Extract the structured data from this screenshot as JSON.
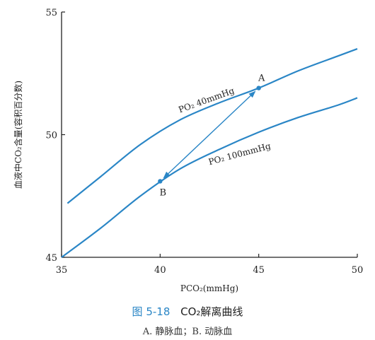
{
  "chart_data": {
    "type": "line",
    "xlabel": "PCO₂(mmHg)",
    "ylabel": "血液中CO₂含量(容积百分数)",
    "xlim": [
      35,
      50
    ],
    "ylim": [
      45,
      55
    ],
    "x_ticks": [
      35,
      40,
      45,
      50
    ],
    "y_ticks": [
      45,
      50,
      55
    ],
    "grid": false,
    "series": [
      {
        "name": "PO₂ 40mmHg",
        "color": "#2a86c6",
        "x": [
          35.3,
          37,
          39,
          41,
          43,
          45,
          47,
          49,
          50
        ],
        "y": [
          47.2,
          48.3,
          49.6,
          50.6,
          51.3,
          51.9,
          52.6,
          53.2,
          53.5
        ]
      },
      {
        "name": "PO₂ 100mmHg",
        "color": "#2a86c6",
        "x": [
          35,
          37,
          39,
          41,
          43,
          45,
          47,
          49,
          50
        ],
        "y": [
          45.0,
          46.2,
          47.5,
          48.6,
          49.4,
          50.1,
          50.7,
          51.2,
          51.5
        ]
      }
    ],
    "points": [
      {
        "label": "A",
        "x": 45,
        "y": 51.9
      },
      {
        "label": "B",
        "x": 40,
        "y": 48.1
      }
    ],
    "arrow_color": "#2a86c6"
  },
  "caption": {
    "figure_number": "图 5-18",
    "title": "CO₂解离曲线",
    "subtitle": "A. 静脉血；B. 动脉血"
  }
}
